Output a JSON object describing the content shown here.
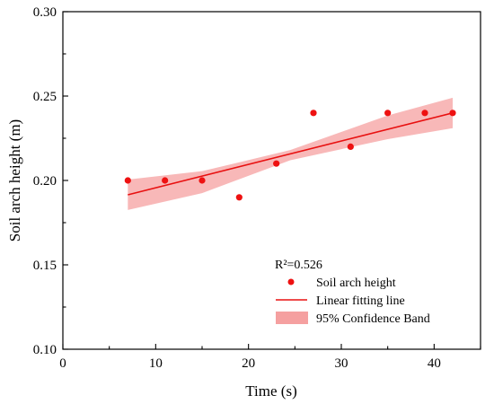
{
  "chart_data": {
    "type": "scatter",
    "xlabel": "Time (s)",
    "ylabel": "Soil arch height (m)",
    "xlim": [
      0,
      45
    ],
    "ylim": [
      0.1,
      0.3
    ],
    "xticks": [
      "0",
      "10",
      "20",
      "30",
      "40"
    ],
    "yticks": [
      "0.10",
      "0.15",
      "0.20",
      "0.25",
      "0.30"
    ],
    "grid": false,
    "legend_position": "bottom-right",
    "r_squared_label": "R²=0.526",
    "series": [
      {
        "name": "Soil arch height",
        "kind": "scatter",
        "x": [
          7,
          11,
          15,
          19,
          23,
          27,
          31,
          35,
          39,
          42
        ],
        "y": [
          0.2,
          0.2,
          0.2,
          0.19,
          0.21,
          0.24,
          0.22,
          0.24,
          0.24,
          0.24
        ]
      },
      {
        "name": "Linear fitting line",
        "kind": "line",
        "x": [
          7,
          42
        ],
        "y": [
          0.1915,
          0.24
        ]
      },
      {
        "name": "95% Confidence Band",
        "kind": "band",
        "x": [
          7,
          15,
          24.5,
          35,
          42
        ],
        "upper": [
          0.2005,
          0.2055,
          0.218,
          0.2385,
          0.249
        ],
        "lower": [
          0.1825,
          0.1925,
          0.212,
          0.2245,
          0.231
        ]
      }
    ],
    "colors": {
      "points": "#ee1111",
      "line": "#e81010",
      "band": "#f5a0a0"
    }
  }
}
